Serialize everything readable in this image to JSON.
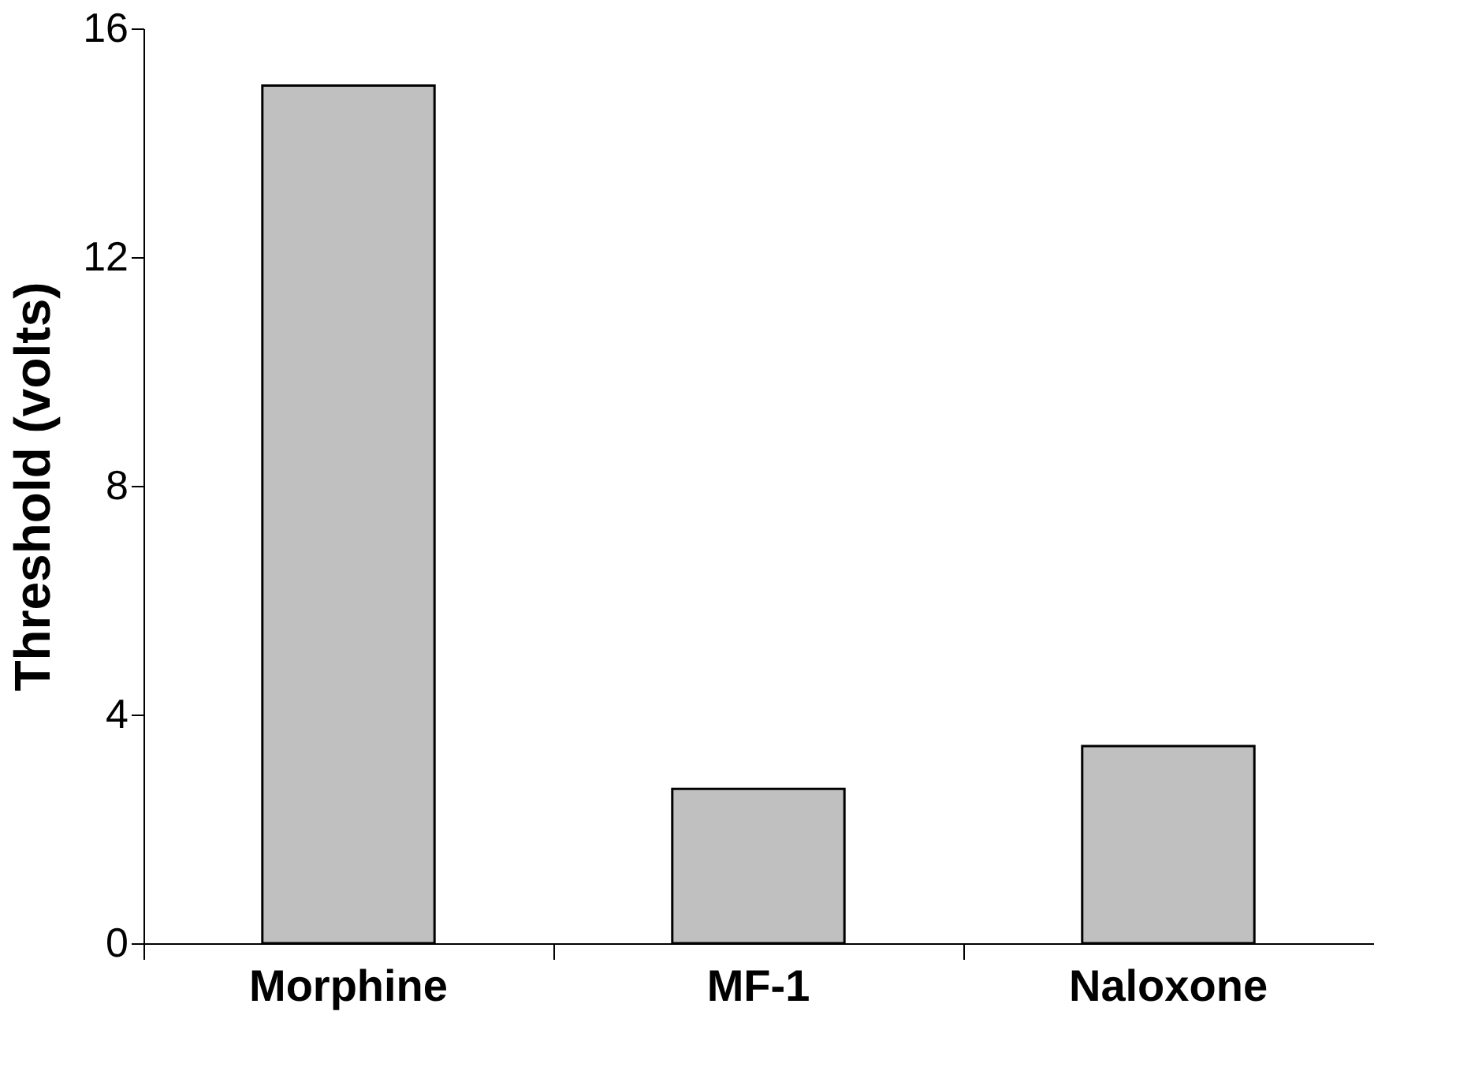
{
  "chart_data": {
    "type": "bar",
    "ylabel": "Threshold (volts)",
    "categories": [
      "Morphine",
      "MF-1",
      "Naloxone"
    ],
    "values": [
      15,
      2.7,
      3.45
    ],
    "color": "#c0c0c0",
    "ylim": [
      0,
      16
    ],
    "yticks": [
      0,
      4,
      8,
      12,
      16
    ],
    "grid": false
  }
}
